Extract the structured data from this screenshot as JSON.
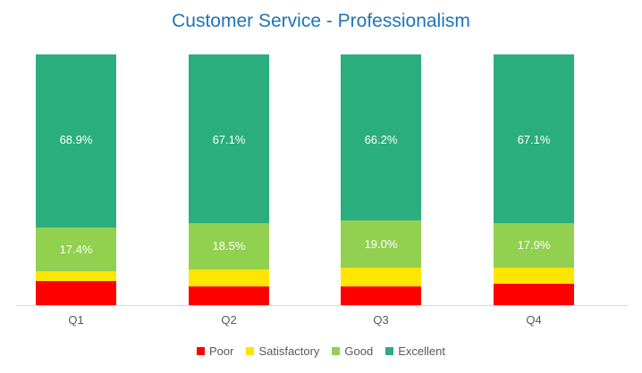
{
  "chart_data": {
    "type": "bar",
    "stacked": true,
    "percent": true,
    "title": "Customer Service - Professionalism",
    "xlabel": "",
    "ylabel": "",
    "ylim": [
      0,
      100
    ],
    "grid": false,
    "legend_position": "bottom",
    "categories": [
      "Q1",
      "Q2",
      "Q3",
      "Q4"
    ],
    "series": [
      {
        "name": "Poor",
        "color": "#FF0000",
        "values": [
          9.7,
          7.5,
          7.5,
          8.5
        ],
        "labels": [
          "",
          "",
          "",
          ""
        ]
      },
      {
        "name": "Satisfactory",
        "color": "#FFE600",
        "values": [
          4.0,
          6.9,
          7.3,
          6.5
        ],
        "labels": [
          "",
          "",
          "",
          ""
        ]
      },
      {
        "name": "Good",
        "color": "#92D050",
        "values": [
          17.4,
          18.5,
          19.0,
          17.9
        ],
        "labels": [
          "17.4%",
          "18.5%",
          "19.0%",
          "17.9%"
        ]
      },
      {
        "name": "Excellent",
        "color": "#2BAE7E",
        "values": [
          68.9,
          67.1,
          66.2,
          67.1
        ],
        "labels": [
          "68.9%",
          "67.1%",
          "66.2%",
          "67.1%"
        ]
      }
    ]
  }
}
